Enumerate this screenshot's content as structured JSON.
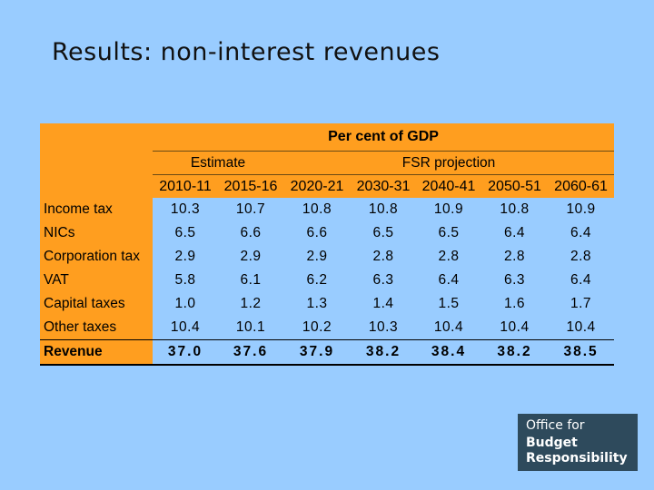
{
  "slide": {
    "title": "Results: non-interest revenues"
  },
  "table": {
    "unit_header": "Per cent of GDP",
    "estimate_header": "Estimate",
    "projection_header": "FSR projection",
    "years": [
      "2010-11",
      "2015-16",
      "2020-21",
      "2030-31",
      "2040-41",
      "2050-51",
      "2060-61"
    ],
    "rows": [
      {
        "label": "Income tax",
        "values": [
          "10.3",
          "10.7",
          "10.8",
          "10.8",
          "10.9",
          "10.8",
          "10.9"
        ]
      },
      {
        "label": "NICs",
        "values": [
          "6.5",
          "6.6",
          "6.6",
          "6.5",
          "6.5",
          "6.4",
          "6.4"
        ]
      },
      {
        "label": "Corporation tax",
        "values": [
          "2.9",
          "2.9",
          "2.9",
          "2.8",
          "2.8",
          "2.8",
          "2.8"
        ]
      },
      {
        "label": "VAT",
        "values": [
          "5.8",
          "6.1",
          "6.2",
          "6.3",
          "6.4",
          "6.3",
          "6.4"
        ]
      },
      {
        "label": "Capital taxes",
        "values": [
          "1.0",
          "1.2",
          "1.3",
          "1.4",
          "1.5",
          "1.6",
          "1.7"
        ]
      },
      {
        "label": "Other taxes",
        "values": [
          "10.4",
          "10.1",
          "10.2",
          "10.3",
          "10.4",
          "10.4",
          "10.4"
        ]
      },
      {
        "label": "Revenue",
        "values": [
          "37.0",
          "37.6",
          "37.9",
          "38.2",
          "38.4",
          "38.2",
          "38.5"
        ]
      }
    ]
  },
  "logo": {
    "line1": "Office for",
    "line2": "Budget",
    "line3": "Responsibility"
  }
}
